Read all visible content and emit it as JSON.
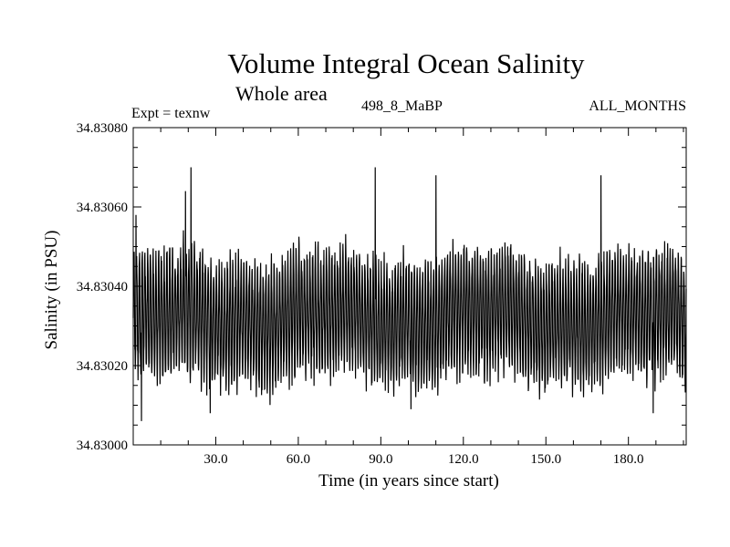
{
  "chart_data": {
    "type": "line",
    "title": "Volume Integral Ocean Salinity",
    "subtitle": "Whole area",
    "experiment": "Expt = texnw",
    "run_id": "498_8_MaBP",
    "months": "ALL_MONTHS",
    "xlabel": "Time (in years since start)",
    "ylabel": "Salinity (in PSU)",
    "xlim": [
      0,
      201
    ],
    "ylim": [
      34.83,
      34.8308
    ],
    "x_ticks": [
      30,
      60,
      90,
      120,
      150,
      180
    ],
    "x_tick_labels": [
      "30.0",
      "60.0",
      "90.0",
      "120.0",
      "150.0",
      "180.0"
    ],
    "y_ticks": [
      34.83,
      34.8302,
      34.8304,
      34.8306,
      34.8308
    ],
    "y_tick_labels": [
      "34.83000",
      "34.83020",
      "34.83040",
      "34.83060",
      "34.83080"
    ],
    "series": [
      {
        "name": "salinity",
        "description_of_signal": "monthly values oscillating around ~34.83032 with annual range ~34.83010–34.83058",
        "x_step_years": 0.0833,
        "mean": 34.83032,
        "typical_min": 34.83012,
        "typical_max": 34.83056,
        "peaks": [
          {
            "x": 1,
            "y": 34.83058
          },
          {
            "x": 19,
            "y": 34.83064
          },
          {
            "x": 21,
            "y": 34.8307
          },
          {
            "x": 88,
            "y": 34.8307
          },
          {
            "x": 110,
            "y": 34.83068
          },
          {
            "x": 170,
            "y": 34.83068
          }
        ],
        "troughs": [
          {
            "x": 3,
            "y": 34.83006
          },
          {
            "x": 28,
            "y": 34.83008
          },
          {
            "x": 101,
            "y": 34.83009
          },
          {
            "x": 189,
            "y": 34.83008
          }
        ]
      }
    ]
  }
}
